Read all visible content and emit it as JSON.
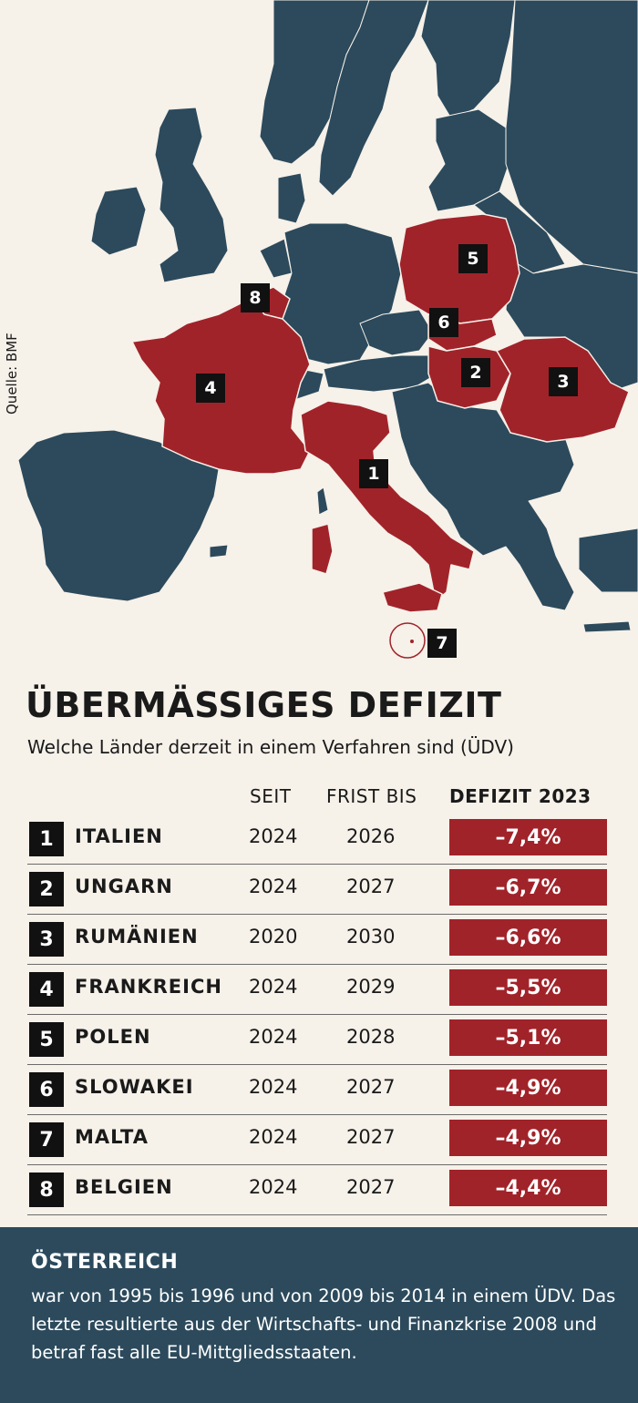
{
  "source": "Quelle: BMF",
  "colors": {
    "background": "#f6f1e9",
    "land": "#2c4a5c",
    "highlight": "#a1232a",
    "marker": "#111111"
  },
  "map": {
    "markers": [
      {
        "label": "1",
        "country": "Italien"
      },
      {
        "label": "2",
        "country": "Ungarn"
      },
      {
        "label": "3",
        "country": "Rumänien"
      },
      {
        "label": "4",
        "country": "Frankreich"
      },
      {
        "label": "5",
        "country": "Polen"
      },
      {
        "label": "6",
        "country": "Slowakei"
      },
      {
        "label": "7",
        "country": "Malta"
      },
      {
        "label": "8",
        "country": "Belgien"
      }
    ]
  },
  "title": "ÜBERMÄSSIGES DEFIZIT",
  "subtitle": "Welche Länder derzeit in einem Verfahren sind (ÜDV)",
  "table": {
    "headers": [
      "SEIT",
      "FRIST BIS",
      "DEFIZIT 2023"
    ],
    "rows": [
      {
        "num": "1",
        "country": "ITALIEN",
        "seit": "2024",
        "frist": "2026",
        "defizit": "–7,4%"
      },
      {
        "num": "2",
        "country": "UNGARN",
        "seit": "2024",
        "frist": "2027",
        "defizit": "–6,7%"
      },
      {
        "num": "3",
        "country": "RUMÄNIEN",
        "seit": "2020",
        "frist": "2030",
        "defizit": "–6,6%"
      },
      {
        "num": "4",
        "country": "FRANKREICH",
        "seit": "2024",
        "frist": "2029",
        "defizit": "–5,5%"
      },
      {
        "num": "5",
        "country": "POLEN",
        "seit": "2024",
        "frist": "2028",
        "defizit": "–5,1%"
      },
      {
        "num": "6",
        "country": "SLOWAKEI",
        "seit": "2024",
        "frist": "2027",
        "defizit": "–4,9%"
      },
      {
        "num": "7",
        "country": "MALTA",
        "seit": "2024",
        "frist": "2027",
        "defizit": "–4,9%"
      },
      {
        "num": "8",
        "country": "BELGIEN",
        "seit": "2024",
        "frist": "2027",
        "defizit": "–4,4%"
      }
    ]
  },
  "info": {
    "title": "ÖSTERREICH",
    "text": "war von 1995 bis 1996 und von 2009 bis 2014 in einem ÜDV. Das letzte resultierte aus der Wirtschafts- und Finanzkrise 2008 und betraf fast alle EU-Mittgliedsstaaten."
  }
}
